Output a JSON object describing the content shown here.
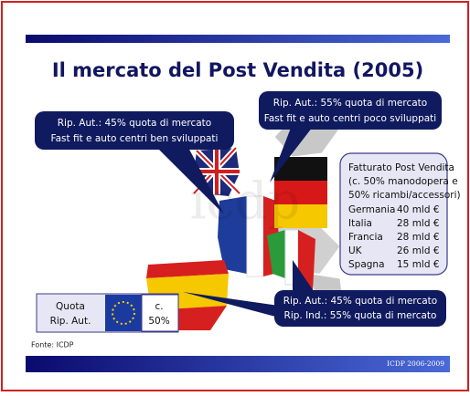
{
  "title": "Il mercato del Post Vendita (2005)",
  "callouts": [
    {
      "lines": [
        "Rip. Aut.: 45% quota di mercato",
        "Fast fit e auto centri ben sviluppati"
      ]
    },
    {
      "lines": [
        "Rip. Aut.: 55% quota di mercato",
        "Fast fit e auto centri poco sviluppati"
      ]
    },
    {
      "lines": [
        "Rip. Aut.: 45% quota di mercato",
        "Rip. Ind.: 55% quota di mercato"
      ]
    }
  ],
  "info_box": {
    "heading_lines": [
      "Fatturato Post Vendita",
      "(c. 50% manodopera e",
      "50% ricambi/accessori)"
    ],
    "rows": [
      [
        "Germania",
        "40 mld €"
      ],
      [
        "Italia",
        "28 mld €"
      ],
      [
        "Francia",
        "28 mld €"
      ],
      [
        "UK",
        "26 mld €"
      ],
      [
        "Spagna",
        "15 mld €"
      ]
    ]
  },
  "quota_box": {
    "label_lines": [
      "Quota",
      "Rip. Aut."
    ],
    "value_lines": [
      "c.",
      "50%"
    ]
  },
  "source": "Fonte: ICDP",
  "footer": "ICDP 2006-2009"
}
